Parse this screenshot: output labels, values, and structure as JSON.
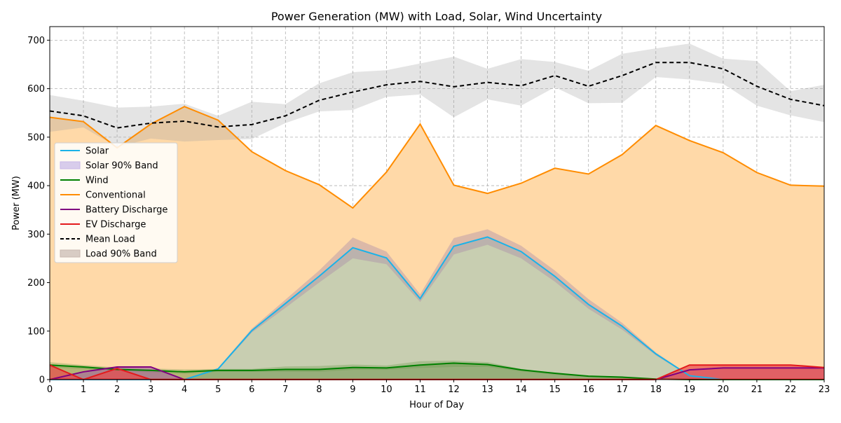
{
  "chart_data": {
    "type": "area",
    "title": "Power Generation (MW) with Load, Solar, Wind Uncertainty",
    "xlabel": "Hour of Day",
    "ylabel": "Power (MW)",
    "xlim": [
      0,
      23
    ],
    "ylim": [
      0,
      728
    ],
    "x_ticks": [
      0,
      1,
      2,
      3,
      4,
      5,
      6,
      7,
      8,
      9,
      10,
      11,
      12,
      13,
      14,
      15,
      16,
      17,
      18,
      19,
      20,
      21,
      22,
      23
    ],
    "y_ticks": [
      0,
      100,
      200,
      300,
      400,
      500,
      600,
      700
    ],
    "grid": true,
    "legend_position": "center-left",
    "x": [
      0,
      1,
      2,
      3,
      4,
      5,
      6,
      7,
      8,
      9,
      10,
      11,
      12,
      13,
      14,
      15,
      16,
      17,
      18,
      19,
      20,
      21,
      22,
      23
    ],
    "series": [
      {
        "name": "Solar",
        "color": "#1ab2e8",
        "values": [
          0,
          0,
          0,
          0,
          0,
          22,
          101,
          157,
          213,
          272,
          251,
          167,
          275,
          294,
          264,
          213,
          155,
          110,
          53,
          8,
          0,
          0,
          0,
          0
        ]
      },
      {
        "name": "Solar 90% Band",
        "color": "#c8b8e8",
        "lower": [
          0,
          0,
          0,
          0,
          0,
          20,
          97,
          148,
          200,
          250,
          238,
          160,
          258,
          278,
          250,
          202,
          146,
          103,
          50,
          7,
          0,
          0,
          0,
          0
        ],
        "upper": [
          0,
          0,
          0,
          0,
          0,
          24,
          105,
          165,
          225,
          293,
          264,
          176,
          292,
          310,
          276,
          225,
          166,
          117,
          56,
          9,
          0,
          0,
          0,
          0
        ]
      },
      {
        "name": "Wind",
        "color": "#008000",
        "values": [
          30,
          26,
          21,
          19,
          16,
          19,
          19,
          21,
          21,
          25,
          24,
          30,
          34,
          31,
          20,
          13,
          7,
          5,
          1,
          0,
          0,
          0,
          0,
          0
        ],
        "lower": [
          25,
          22,
          18,
          15,
          12,
          16,
          16,
          16,
          16,
          20,
          20,
          24,
          26,
          26,
          17,
          10,
          5,
          3,
          0,
          0,
          0,
          0,
          0,
          0
        ],
        "upper": [
          36,
          30,
          25,
          23,
          21,
          22,
          22,
          27,
          28,
          31,
          29,
          38,
          39,
          36,
          22,
          14,
          8,
          6,
          2,
          0,
          0,
          0,
          0,
          0
        ]
      },
      {
        "name": "Conventional",
        "color": "#ff8c00",
        "values": [
          541,
          532,
          478,
          527,
          563,
          535,
          470,
          431,
          402,
          354,
          428,
          527,
          401,
          384,
          405,
          436,
          424,
          464,
          524,
          493,
          468,
          427,
          401,
          399
        ]
      },
      {
        "name": "Battery Discharge",
        "color": "#800080",
        "values": [
          0,
          16,
          26,
          26,
          0,
          0,
          0,
          0,
          0,
          0,
          0,
          0,
          0,
          0,
          0,
          0,
          0,
          0,
          0,
          20,
          24,
          24,
          24,
          24
        ]
      },
      {
        "name": "EV Discharge",
        "color": "#e31a1c",
        "values": [
          30,
          0,
          23,
          0,
          0,
          0,
          0,
          0,
          0,
          0,
          0,
          0,
          0,
          0,
          0,
          0,
          0,
          0,
          0,
          30,
          30,
          30,
          30,
          25
        ]
      },
      {
        "name": "Mean Load",
        "color": "#000000",
        "values": [
          554,
          544,
          519,
          529,
          533,
          521,
          526,
          544,
          576,
          593,
          608,
          615,
          604,
          613,
          606,
          627,
          605,
          627,
          654,
          654,
          641,
          605,
          578,
          565
        ]
      },
      {
        "name": "Load 90% Band",
        "color": "#b0b0b0",
        "lower": [
          511,
          520,
          480,
          497,
          491,
          494,
          496,
          529,
          553,
          556,
          583,
          588,
          541,
          578,
          565,
          603,
          570,
          571,
          624,
          619,
          610,
          565,
          545,
          531
        ],
        "upper": [
          587,
          575,
          561,
          563,
          569,
          544,
          573,
          568,
          611,
          634,
          638,
          652,
          666,
          641,
          661,
          655,
          637,
          672,
          683,
          693,
          662,
          657,
          595,
          608
        ]
      }
    ]
  }
}
